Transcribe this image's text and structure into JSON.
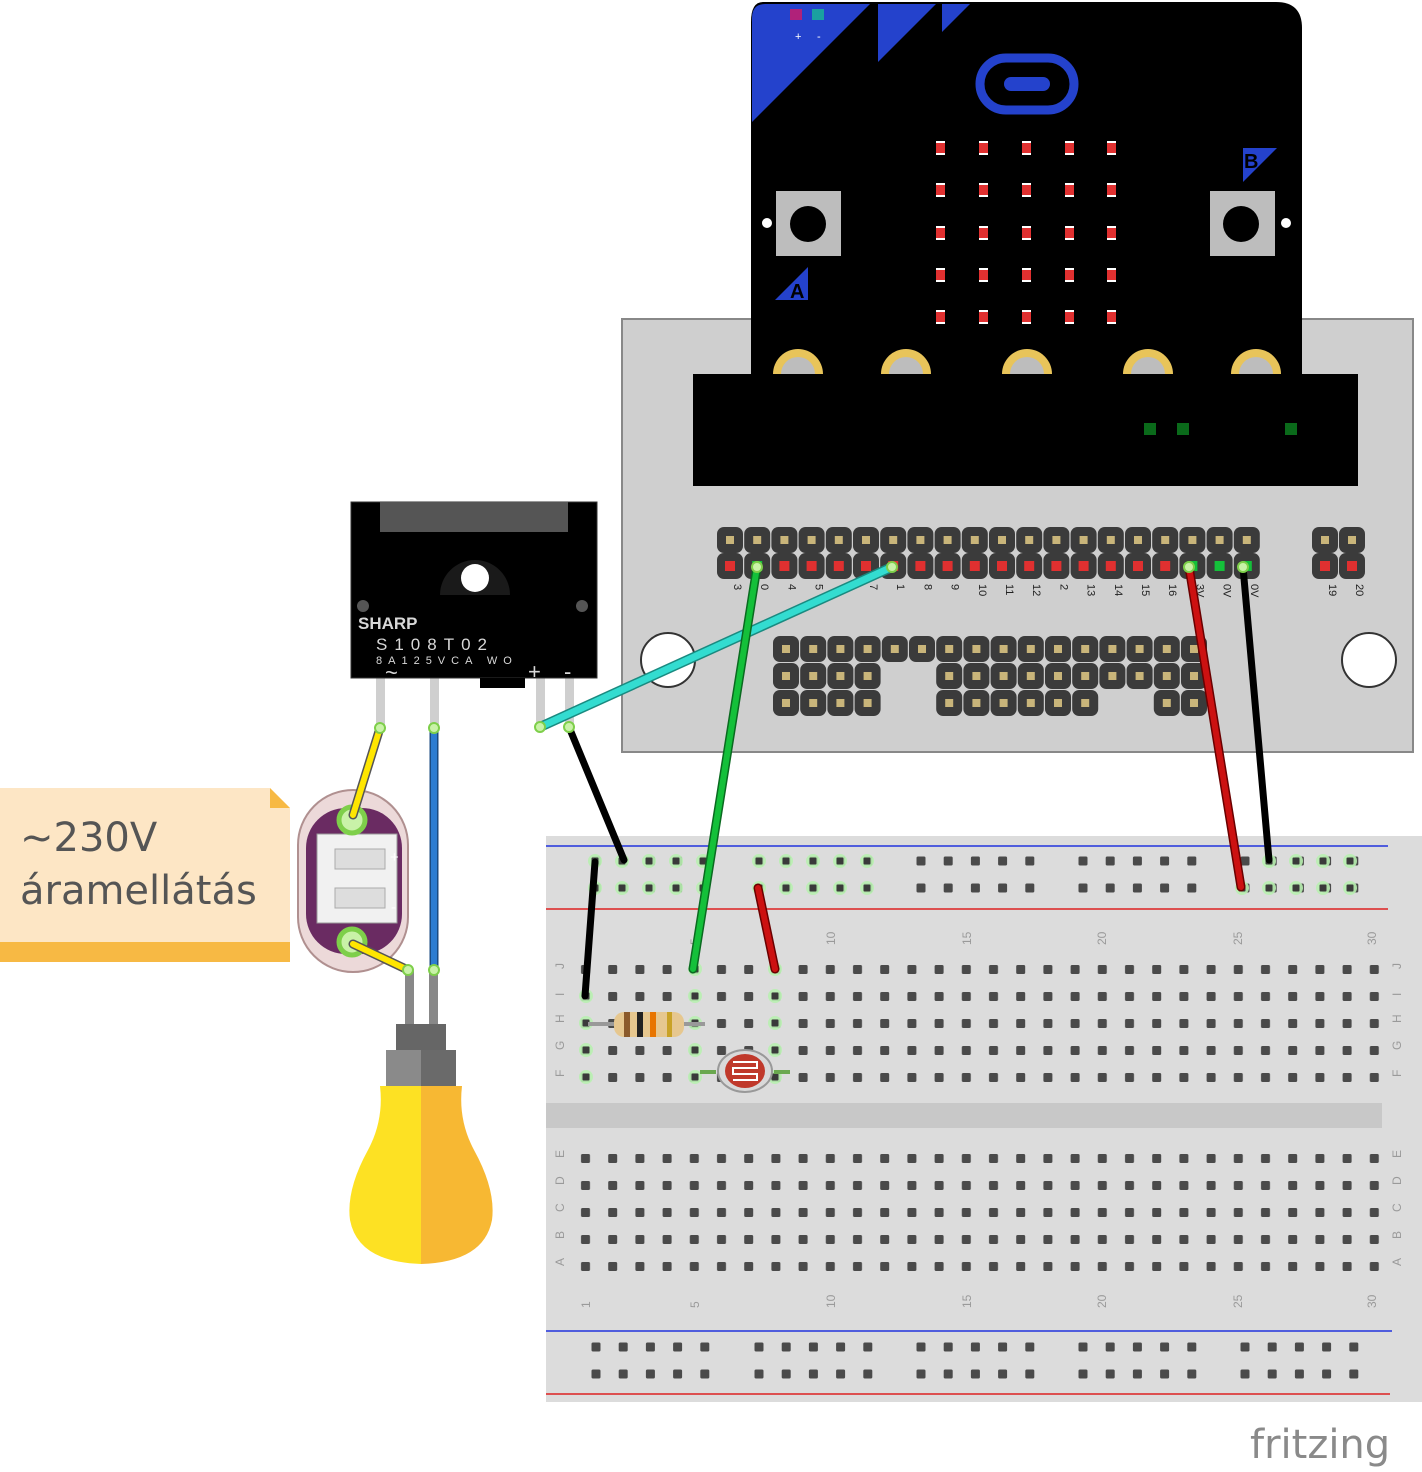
{
  "note": {
    "line1": "~230V",
    "line2": "áramellátás"
  },
  "relay": {
    "brand": "SHARP",
    "model": "S108T02",
    "rating": "8A125VCA WO",
    "ac_symbol": "~",
    "plus_symbol": "+",
    "minus_symbol": "-"
  },
  "power_socket": {
    "plus": "+",
    "minus": "-"
  },
  "microbit": {
    "button_a": "A",
    "button_b": "B",
    "battery_plus": "+",
    "battery_minus": "-"
  },
  "edge_connector": {
    "pin_labels": [
      "3",
      "0",
      "4",
      "5",
      "6",
      "7",
      "1",
      "8",
      "9",
      "10",
      "11",
      "12",
      "2",
      "13",
      "14",
      "15",
      "16",
      "3V",
      "0V",
      "0V"
    ],
    "extra_labels": [
      "19",
      "20"
    ]
  },
  "breadboard": {
    "column_numbers": [
      "1",
      "5",
      "10",
      "15",
      "20",
      "25",
      "30"
    ],
    "rows_top": [
      "J",
      "I",
      "H",
      "G",
      "F"
    ],
    "rows_bottom": [
      "E",
      "D",
      "C",
      "B",
      "A"
    ]
  },
  "wire_colors": {
    "yellow": "#ffe600",
    "blue": "#2c7cd1",
    "cyan": "#33dcd0",
    "black": "#222222",
    "green": "#14c03a",
    "red": "#cc1111"
  },
  "watermark": "fritzing"
}
